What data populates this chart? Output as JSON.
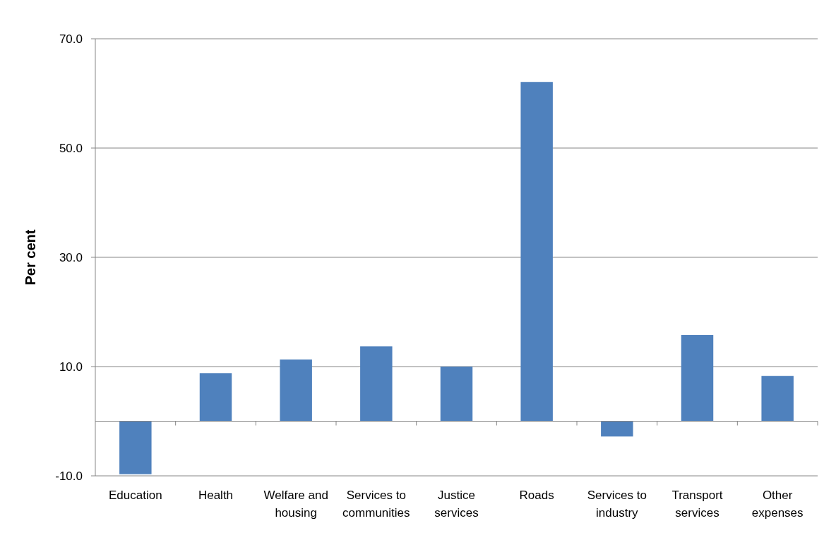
{
  "chart_data": {
    "type": "bar",
    "ylabel": "Per cent",
    "categories": [
      "Education",
      "Health",
      "Welfare and housing",
      "Services to communities",
      "Justice services",
      "Roads",
      "Services to industry",
      "Transport services",
      "Other expenses"
    ],
    "values": [
      -9.7,
      8.8,
      11.3,
      13.7,
      10.0,
      62.1,
      -2.8,
      15.8,
      8.3
    ],
    "color": "#4f81bd",
    "ylim": [
      -10,
      70
    ],
    "yticks": [
      {
        "value": -10,
        "label": "-10.0"
      },
      {
        "value": 10,
        "label": "10.0"
      },
      {
        "value": 30,
        "label": "30.0"
      },
      {
        "value": 50,
        "label": "50.0"
      },
      {
        "value": 70,
        "label": "70.0"
      }
    ],
    "grid": "y"
  }
}
